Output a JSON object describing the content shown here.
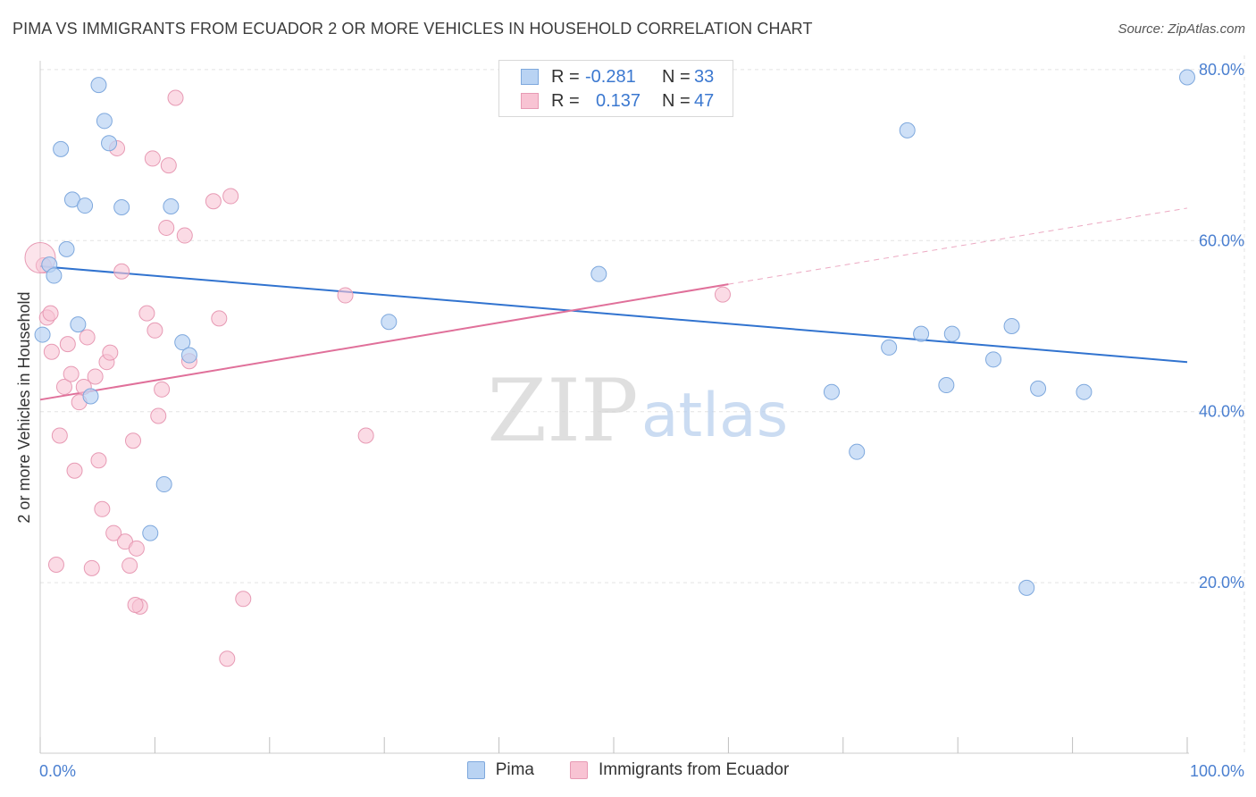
{
  "title": "PIMA VS IMMIGRANTS FROM ECUADOR 2 OR MORE VEHICLES IN HOUSEHOLD CORRELATION CHART",
  "source": "Source: ZipAtlas.com",
  "watermark": {
    "zip": "ZIP",
    "atlas": "atlas"
  },
  "legend": {
    "pima": {
      "r_label": "R =",
      "r_value": "-0.281",
      "n_label": "N =",
      "n_value": "33"
    },
    "ecuador": {
      "r_label": "R =",
      "r_value": "0.137",
      "n_label": "N =",
      "n_value": "47"
    }
  },
  "bottom_legend": {
    "pima": "Pima",
    "ecuador": "Immigrants from Ecuador"
  },
  "colors": {
    "pima_fill": "#b9d3f3",
    "pima_stroke": "#7ea8dd",
    "pima_line": "#3173cf",
    "ecuador_fill": "#f8c3d3",
    "ecuador_stroke": "#e79ab4",
    "ecuador_line": "#e0709a",
    "tick": "#4a7fd0",
    "grid": "#e3e3e3"
  },
  "chart_data": {
    "type": "scatter",
    "title": "PIMA VS IMMIGRANTS FROM ECUADOR 2 OR MORE VEHICLES IN HOUSEHOLD CORRELATION CHART",
    "xlabel": "",
    "ylabel": "2 or more Vehicles in Household",
    "xlim": [
      0,
      100
    ],
    "ylim": [
      0,
      84
    ],
    "x_tick_labels": [
      "0.0%",
      "100.0%"
    ],
    "y_ticks": [
      20,
      40,
      60,
      80
    ],
    "y_tick_labels": [
      "20.0%",
      "40.0%",
      "60.0%",
      "80.0%"
    ],
    "grid": true,
    "series": [
      {
        "name": "Pima",
        "points": [
          [
            0.2,
            49.0
          ],
          [
            0.8,
            57.2
          ],
          [
            1.2,
            55.9
          ],
          [
            1.8,
            70.7
          ],
          [
            2.3,
            59.0
          ],
          [
            2.8,
            64.8
          ],
          [
            3.9,
            64.1
          ],
          [
            4.4,
            41.8
          ],
          [
            3.3,
            50.2
          ],
          [
            5.1,
            78.2
          ],
          [
            5.6,
            74.0
          ],
          [
            6.0,
            71.4
          ],
          [
            7.1,
            63.9
          ],
          [
            9.6,
            25.8
          ],
          [
            10.8,
            31.5
          ],
          [
            11.4,
            64.0
          ],
          [
            12.4,
            48.1
          ],
          [
            13.0,
            46.6
          ],
          [
            30.4,
            50.5
          ],
          [
            48.7,
            56.1
          ],
          [
            69.0,
            42.3
          ],
          [
            71.2,
            35.3
          ],
          [
            74.0,
            47.5
          ],
          [
            75.6,
            72.9
          ],
          [
            76.8,
            49.1
          ],
          [
            79.0,
            43.1
          ],
          [
            79.5,
            49.1
          ],
          [
            83.1,
            46.1
          ],
          [
            84.7,
            50.0
          ],
          [
            86.0,
            19.4
          ],
          [
            87.0,
            42.7
          ],
          [
            91.0,
            42.3
          ],
          [
            100.0,
            79.1
          ]
        ],
        "trend": {
          "x": [
            0,
            100
          ],
          "y": [
            57.0,
            45.8
          ]
        }
      },
      {
        "name": "Immigrants from Ecuador",
        "points": [
          [
            0.3,
            57.1
          ],
          [
            0.6,
            51.0
          ],
          [
            0.9,
            51.5
          ],
          [
            1.4,
            22.1
          ],
          [
            1.7,
            37.2
          ],
          [
            2.1,
            42.9
          ],
          [
            2.4,
            47.9
          ],
          [
            2.7,
            44.4
          ],
          [
            3.0,
            33.1
          ],
          [
            3.4,
            41.1
          ],
          [
            3.8,
            42.9
          ],
          [
            4.1,
            48.7
          ],
          [
            4.5,
            21.7
          ],
          [
            4.8,
            44.1
          ],
          [
            5.1,
            34.3
          ],
          [
            5.4,
            28.6
          ],
          [
            5.8,
            45.8
          ],
          [
            6.1,
            46.9
          ],
          [
            6.4,
            25.8
          ],
          [
            6.7,
            70.8
          ],
          [
            7.1,
            56.4
          ],
          [
            7.4,
            24.8
          ],
          [
            7.8,
            22.0
          ],
          [
            8.1,
            36.6
          ],
          [
            8.4,
            24.0
          ],
          [
            8.7,
            17.2
          ],
          [
            8.3,
            17.4
          ],
          [
            9.3,
            51.5
          ],
          [
            9.8,
            69.6
          ],
          [
            10.0,
            49.5
          ],
          [
            10.3,
            39.5
          ],
          [
            10.6,
            42.6
          ],
          [
            11.0,
            61.5
          ],
          [
            11.2,
            68.8
          ],
          [
            11.8,
            76.7
          ],
          [
            12.6,
            60.6
          ],
          [
            13.0,
            45.9
          ],
          [
            15.1,
            64.6
          ],
          [
            15.6,
            50.9
          ],
          [
            16.3,
            11.1
          ],
          [
            16.6,
            65.2
          ],
          [
            17.7,
            18.1
          ],
          [
            26.6,
            53.6
          ],
          [
            28.4,
            37.2
          ],
          [
            59.5,
            53.7
          ],
          [
            1.0,
            47.0
          ],
          [
            0.0,
            58.0
          ]
        ],
        "trend": {
          "x": [
            0,
            60
          ],
          "y": [
            41.4,
            54.9
          ]
        },
        "trend_extension": {
          "x": [
            60,
            100
          ],
          "y": [
            54.9,
            63.8
          ]
        }
      }
    ]
  }
}
